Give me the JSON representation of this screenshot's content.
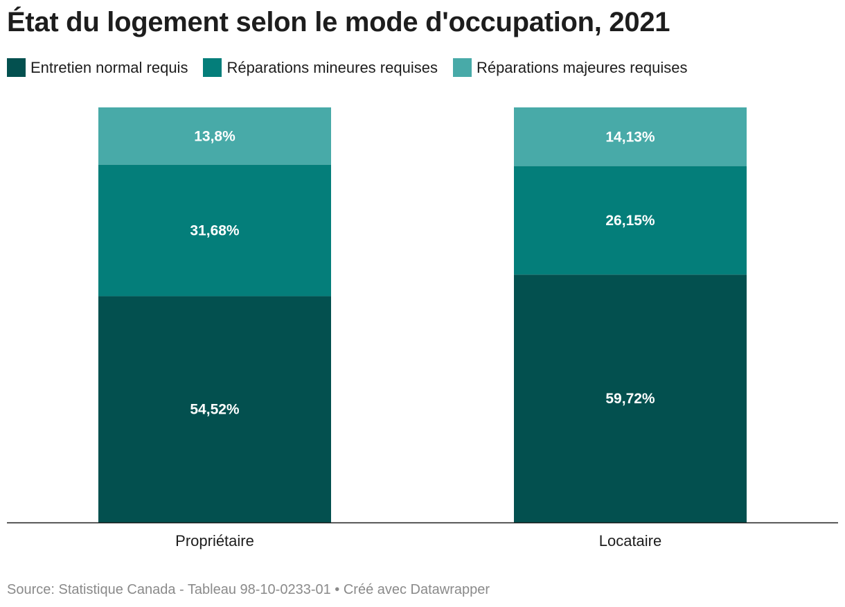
{
  "title": "État du logement selon le mode d'occupation, 2021",
  "legend": [
    {
      "label": "Entretien normal requis",
      "color": "#03504f"
    },
    {
      "label": "Réparations mineures requises",
      "color": "#047e7a"
    },
    {
      "label": "Réparations majeures requises",
      "color": "#48aaa8"
    }
  ],
  "source": "Source: Statistique Canada - Tableau 98-10-0233-01 • Créé avec Datawrapper",
  "chart_data": {
    "type": "bar",
    "stacked": true,
    "orientation": "vertical",
    "categories": [
      "Propriétaire",
      "Locataire"
    ],
    "series": [
      {
        "name": "Entretien normal requis",
        "color": "#03504f",
        "values": [
          54.52,
          59.72
        ],
        "labels": [
          "54,52%",
          "59,72%"
        ]
      },
      {
        "name": "Réparations mineures requises",
        "color": "#047e7a",
        "values": [
          31.68,
          26.15
        ],
        "labels": [
          "31,68%",
          "26,15%"
        ]
      },
      {
        "name": "Réparations majeures requises",
        "color": "#48aaa8",
        "values": [
          13.8,
          14.13
        ],
        "labels": [
          "13,8%",
          "14,13%"
        ]
      }
    ],
    "ylim": [
      0,
      100
    ],
    "grid": false,
    "legend_position": "top-left"
  }
}
